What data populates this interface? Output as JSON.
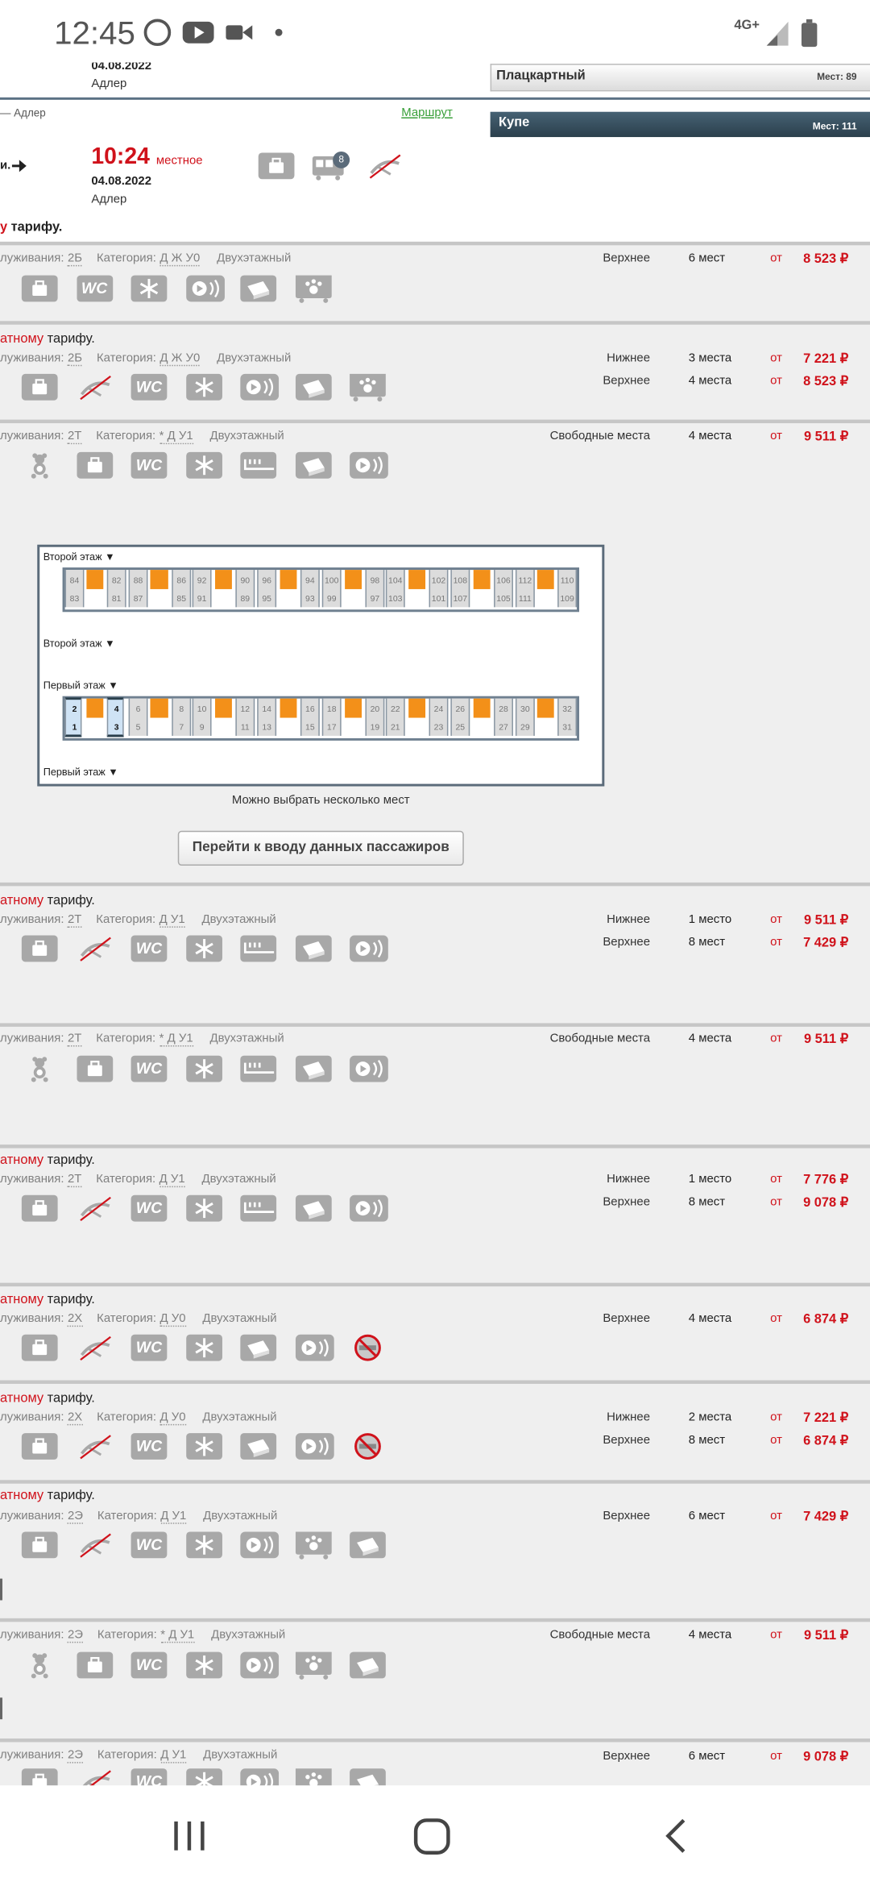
{
  "status_bar": {
    "time": "12:45",
    "network": "4G+"
  },
  "header": {
    "prev_date": "04.08.2022",
    "prev_city": "Адлер",
    "route_from_to": "— Адлер",
    "route_link": "Маршрут",
    "arrow_text": "и.",
    "arrival_time": "10:24",
    "arrival_time_note": "местное",
    "arrival_date": "04.08.2022",
    "arrival_city": "Адлер",
    "car_badge": "8"
  },
  "car_types": [
    {
      "name": "Плацкартный",
      "seats": "Мест: 89"
    },
    {
      "name": "Купе",
      "seats": "Мест: 111"
    }
  ],
  "wc_label": "WC",
  "cars": [
    {
      "fare": [
        "у",
        "тарифу."
      ],
      "service_label": "луживания:",
      "class": "2Б",
      "category_label": "Категория:",
      "category": "Д Ж У0",
      "deck": "Двухэтажный",
      "offers": [
        {
          "type": "Верхнее",
          "count": "6 мест",
          "from": "от",
          "price": "8 523 ₽"
        }
      ]
    },
    {
      "fare": [
        "атному",
        "тарифу."
      ],
      "service_label": "луживания:",
      "class": "2Б",
      "category_label": "Категория:",
      "category": "Д Ж У0",
      "deck": "Двухэтажный",
      "offers": [
        {
          "type": "Нижнее",
          "count": "3 места",
          "from": "от",
          "price": "7 221 ₽"
        },
        {
          "type": "Верхнее",
          "count": "4 места",
          "from": "от",
          "price": "8 523 ₽"
        }
      ]
    },
    {
      "service_label": "луживания:",
      "class": "2Т",
      "category_label": "Категория:",
      "category": "* Д У1",
      "deck": "Двухэтажный",
      "offers": [
        {
          "type": "Свободные места",
          "count": "4 места",
          "from": "от",
          "price": "9 511 ₽"
        }
      ]
    },
    {
      "fare": [
        "атному",
        "тарифу."
      ],
      "service_label": "луживания:",
      "class": "2Т",
      "category_label": "Категория:",
      "category": "Д У1",
      "deck": "Двухэтажный",
      "offers": [
        {
          "type": "Нижнее",
          "count": "1 место",
          "from": "от",
          "price": "9 511 ₽"
        },
        {
          "type": "Верхнее",
          "count": "8 мест",
          "from": "от",
          "price": "7 429 ₽"
        }
      ]
    },
    {
      "service_label": "луживания:",
      "class": "2Т",
      "category_label": "Категория:",
      "category": "* Д У1",
      "deck": "Двухэтажный",
      "offers": [
        {
          "type": "Свободные места",
          "count": "4 места",
          "from": "от",
          "price": "9 511 ₽"
        }
      ]
    },
    {
      "fare": [
        "атному",
        "тарифу."
      ],
      "service_label": "луживания:",
      "class": "2Т",
      "category_label": "Категория:",
      "category": "Д У1",
      "deck": "Двухэтажный",
      "offers": [
        {
          "type": "Нижнее",
          "count": "1 место",
          "from": "от",
          "price": "7 776 ₽"
        },
        {
          "type": "Верхнее",
          "count": "8 мест",
          "from": "от",
          "price": "9 078 ₽"
        }
      ]
    },
    {
      "fare": [
        "атному",
        "тарифу."
      ],
      "service_label": "луживания:",
      "class": "2Х",
      "category_label": "Категория:",
      "category": "Д У0",
      "deck": "Двухэтажный",
      "offers": [
        {
          "type": "Верхнее",
          "count": "4 места",
          "from": "от",
          "price": "6 874 ₽"
        }
      ]
    },
    {
      "fare": [
        "атному",
        "тарифу."
      ],
      "service_label": "луживания:",
      "class": "2Х",
      "category_label": "Категория:",
      "category": "Д У0",
      "deck": "Двухэтажный",
      "offers": [
        {
          "type": "Нижнее",
          "count": "2 места",
          "from": "от",
          "price": "7 221 ₽"
        },
        {
          "type": "Верхнее",
          "count": "8 мест",
          "from": "от",
          "price": "6 874 ₽"
        }
      ]
    },
    {
      "fare": [
        "атному",
        "тарифу."
      ],
      "service_label": "луживания:",
      "class": "2Э",
      "category_label": "Категория:",
      "category": "Д У1",
      "deck": "Двухэтажный",
      "offers": [
        {
          "type": "Верхнее",
          "count": "6 мест",
          "from": "от",
          "price": "7 429 ₽"
        }
      ]
    },
    {
      "service_label": "луживания:",
      "class": "2Э",
      "category_label": "Категория:",
      "category": "* Д У1",
      "deck": "Двухэтажный",
      "offers": [
        {
          "type": "Свободные места",
          "count": "4 места",
          "from": "от",
          "price": "9 511 ₽"
        }
      ]
    },
    {
      "service_label": "луживания:",
      "class": "2Э",
      "category_label": "Категория:",
      "category": "Д У1",
      "deck": "Двухэтажный",
      "offers": [
        {
          "type": "Верхнее",
          "count": "6 мест",
          "from": "от",
          "price": "9 078 ₽"
        }
      ]
    }
  ],
  "seat_map": {
    "upper": {
      "label_top": "Второй этаж ▼",
      "label_bottom": "Второй этаж ▼",
      "seats": [
        [
          "84",
          "83"
        ],
        [
          "82",
          "81"
        ],
        [
          "88",
          "87"
        ],
        [
          "86",
          "85"
        ],
        [
          "92",
          "91"
        ],
        [
          "90",
          "89"
        ],
        [
          "96",
          "95"
        ],
        [
          "94",
          "93"
        ],
        [
          "100",
          "99"
        ],
        [
          "98",
          "97"
        ],
        [
          "104",
          "103"
        ],
        [
          "102",
          "101"
        ],
        [
          "108",
          "107"
        ],
        [
          "106",
          "105"
        ],
        [
          "112",
          "111"
        ],
        [
          "110",
          "109"
        ]
      ]
    },
    "lower": {
      "label_top": "Первый этаж ▼",
      "label_bottom": "Первый этаж ▼",
      "seats": [
        [
          "2",
          "1"
        ],
        [
          "4",
          "3"
        ],
        [
          "6",
          "5"
        ],
        [
          "8",
          "7"
        ],
        [
          "10",
          "9"
        ],
        [
          "12",
          "11"
        ],
        [
          "14",
          "13"
        ],
        [
          "16",
          "15"
        ],
        [
          "18",
          "17"
        ],
        [
          "20",
          "19"
        ],
        [
          "22",
          "21"
        ],
        [
          "24",
          "23"
        ],
        [
          "26",
          "25"
        ],
        [
          "28",
          "27"
        ],
        [
          "30",
          "29"
        ],
        [
          "32",
          "31"
        ]
      ]
    },
    "hint": "Можно выбрать несколько мест",
    "button": "Перейти к вводу данных пассажиров"
  }
}
